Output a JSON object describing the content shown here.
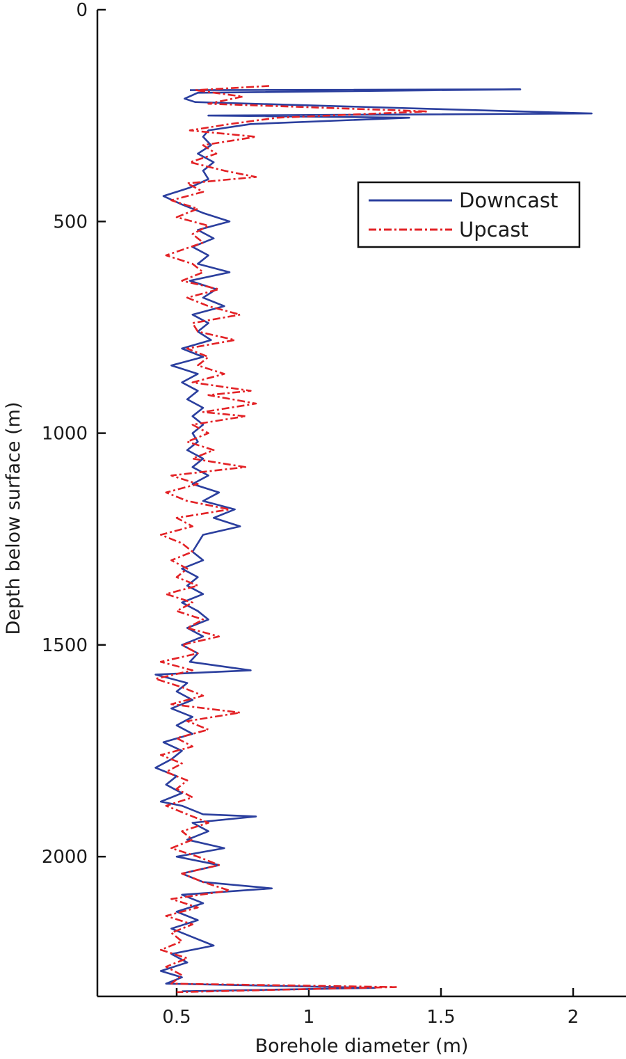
{
  "chart_data": {
    "type": "line",
    "orientation": "depth-profile",
    "title": "",
    "xlabel": "Borehole diameter (m)",
    "ylabel": "Depth below surface (m)",
    "xlim": [
      0.2,
      2.2
    ],
    "ylim": [
      0,
      2330
    ],
    "y_inverted": true,
    "grid": false,
    "legend_position": "top-right",
    "x_ticks": [
      0.5,
      1,
      1.5,
      2
    ],
    "x_tick_labels": [
      "0.5",
      "1",
      "1.5",
      "2"
    ],
    "y_ticks": [
      0,
      500,
      1000,
      1500,
      2000
    ],
    "y_tick_labels": [
      "0",
      "500",
      "1000",
      "1500",
      "2000"
    ],
    "series": [
      {
        "name": "Downcast",
        "color": "#2b3f9e",
        "dash": "solid",
        "points": [
          [
            0.55,
            190
          ],
          [
            1.8,
            188
          ],
          [
            0.58,
            196
          ],
          [
            0.53,
            210
          ],
          [
            0.57,
            218
          ],
          [
            2.07,
            245
          ],
          [
            0.62,
            250
          ],
          [
            1.38,
            255
          ],
          [
            0.78,
            270
          ],
          [
            0.62,
            285
          ],
          [
            0.6,
            300
          ],
          [
            0.63,
            320
          ],
          [
            0.58,
            340
          ],
          [
            0.64,
            360
          ],
          [
            0.6,
            380
          ],
          [
            0.62,
            400
          ],
          [
            0.55,
            420
          ],
          [
            0.45,
            440
          ],
          [
            0.52,
            460
          ],
          [
            0.6,
            480
          ],
          [
            0.7,
            500
          ],
          [
            0.58,
            520
          ],
          [
            0.64,
            540
          ],
          [
            0.56,
            560
          ],
          [
            0.62,
            580
          ],
          [
            0.58,
            600
          ],
          [
            0.7,
            620
          ],
          [
            0.55,
            640
          ],
          [
            0.65,
            660
          ],
          [
            0.6,
            680
          ],
          [
            0.68,
            700
          ],
          [
            0.56,
            720
          ],
          [
            0.62,
            740
          ],
          [
            0.58,
            760
          ],
          [
            0.63,
            780
          ],
          [
            0.52,
            800
          ],
          [
            0.6,
            820
          ],
          [
            0.48,
            840
          ],
          [
            0.58,
            860
          ],
          [
            0.52,
            880
          ],
          [
            0.58,
            900
          ],
          [
            0.54,
            920
          ],
          [
            0.6,
            940
          ],
          [
            0.56,
            960
          ],
          [
            0.6,
            980
          ],
          [
            0.56,
            1000
          ],
          [
            0.58,
            1020
          ],
          [
            0.54,
            1040
          ],
          [
            0.6,
            1060
          ],
          [
            0.56,
            1080
          ],
          [
            0.62,
            1100
          ],
          [
            0.56,
            1120
          ],
          [
            0.66,
            1140
          ],
          [
            0.6,
            1160
          ],
          [
            0.72,
            1180
          ],
          [
            0.64,
            1200
          ],
          [
            0.74,
            1220
          ],
          [
            0.6,
            1240
          ],
          [
            0.58,
            1260
          ],
          [
            0.56,
            1280
          ],
          [
            0.6,
            1300
          ],
          [
            0.52,
            1320
          ],
          [
            0.58,
            1340
          ],
          [
            0.54,
            1360
          ],
          [
            0.6,
            1380
          ],
          [
            0.52,
            1400
          ],
          [
            0.58,
            1420
          ],
          [
            0.62,
            1440
          ],
          [
            0.54,
            1460
          ],
          [
            0.6,
            1480
          ],
          [
            0.52,
            1500
          ],
          [
            0.58,
            1520
          ],
          [
            0.55,
            1540
          ],
          [
            0.78,
            1560
          ],
          [
            0.42,
            1570
          ],
          [
            0.54,
            1590
          ],
          [
            0.5,
            1610
          ],
          [
            0.56,
            1630
          ],
          [
            0.48,
            1650
          ],
          [
            0.56,
            1670
          ],
          [
            0.5,
            1690
          ],
          [
            0.56,
            1710
          ],
          [
            0.45,
            1730
          ],
          [
            0.52,
            1750
          ],
          [
            0.48,
            1770
          ],
          [
            0.42,
            1790
          ],
          [
            0.5,
            1810
          ],
          [
            0.46,
            1830
          ],
          [
            0.52,
            1850
          ],
          [
            0.44,
            1870
          ],
          [
            0.52,
            1880
          ],
          [
            0.6,
            1900
          ],
          [
            0.8,
            1905
          ],
          [
            0.56,
            1920
          ],
          [
            0.62,
            1940
          ],
          [
            0.54,
            1960
          ],
          [
            0.68,
            1980
          ],
          [
            0.5,
            2000
          ],
          [
            0.66,
            2020
          ],
          [
            0.52,
            2040
          ],
          [
            0.6,
            2060
          ],
          [
            0.86,
            2075
          ],
          [
            0.52,
            2090
          ],
          [
            0.6,
            2110
          ],
          [
            0.5,
            2130
          ],
          [
            0.58,
            2150
          ],
          [
            0.48,
            2170
          ],
          [
            0.56,
            2190
          ],
          [
            0.64,
            2210
          ],
          [
            0.48,
            2230
          ],
          [
            0.54,
            2250
          ],
          [
            0.44,
            2270
          ],
          [
            0.52,
            2285
          ],
          [
            0.46,
            2300
          ],
          [
            1.25,
            2310
          ],
          [
            0.52,
            2318
          ]
        ]
      },
      {
        "name": "Upcast",
        "color": "#e32226",
        "dash": "dashdot",
        "points": [
          [
            0.85,
            180
          ],
          [
            0.57,
            190
          ],
          [
            0.75,
            205
          ],
          [
            0.62,
            222
          ],
          [
            1.45,
            240
          ],
          [
            0.88,
            255
          ],
          [
            0.7,
            270
          ],
          [
            0.55,
            285
          ],
          [
            0.8,
            300
          ],
          [
            0.6,
            320
          ],
          [
            0.65,
            340
          ],
          [
            0.55,
            360
          ],
          [
            0.68,
            380
          ],
          [
            0.8,
            395
          ],
          [
            0.54,
            410
          ],
          [
            0.6,
            430
          ],
          [
            0.48,
            450
          ],
          [
            0.58,
            470
          ],
          [
            0.5,
            490
          ],
          [
            0.62,
            510
          ],
          [
            0.56,
            530
          ],
          [
            0.6,
            550
          ],
          [
            0.46,
            580
          ],
          [
            0.56,
            600
          ],
          [
            0.6,
            620
          ],
          [
            0.52,
            640
          ],
          [
            0.66,
            660
          ],
          [
            0.54,
            680
          ],
          [
            0.62,
            700
          ],
          [
            0.74,
            720
          ],
          [
            0.56,
            740
          ],
          [
            0.58,
            760
          ],
          [
            0.72,
            780
          ],
          [
            0.54,
            800
          ],
          [
            0.62,
            820
          ],
          [
            0.58,
            840
          ],
          [
            0.68,
            860
          ],
          [
            0.56,
            880
          ],
          [
            0.78,
            900
          ],
          [
            0.62,
            910
          ],
          [
            0.8,
            930
          ],
          [
            0.6,
            950
          ],
          [
            0.76,
            960
          ],
          [
            0.56,
            980
          ],
          [
            0.62,
            1000
          ],
          [
            0.54,
            1020
          ],
          [
            0.64,
            1040
          ],
          [
            0.56,
            1060
          ],
          [
            0.76,
            1080
          ],
          [
            0.48,
            1100
          ],
          [
            0.58,
            1120
          ],
          [
            0.46,
            1140
          ],
          [
            0.54,
            1160
          ],
          [
            0.7,
            1180
          ],
          [
            0.5,
            1200
          ],
          [
            0.56,
            1220
          ],
          [
            0.44,
            1240
          ],
          [
            0.52,
            1260
          ],
          [
            0.56,
            1280
          ],
          [
            0.48,
            1300
          ],
          [
            0.54,
            1320
          ],
          [
            0.5,
            1340
          ],
          [
            0.58,
            1360
          ],
          [
            0.46,
            1380
          ],
          [
            0.56,
            1400
          ],
          [
            0.5,
            1420
          ],
          [
            0.6,
            1440
          ],
          [
            0.54,
            1460
          ],
          [
            0.66,
            1480
          ],
          [
            0.52,
            1500
          ],
          [
            0.58,
            1520
          ],
          [
            0.44,
            1540
          ],
          [
            0.56,
            1560
          ],
          [
            0.42,
            1580
          ],
          [
            0.52,
            1600
          ],
          [
            0.6,
            1620
          ],
          [
            0.48,
            1640
          ],
          [
            0.74,
            1660
          ],
          [
            0.54,
            1680
          ],
          [
            0.62,
            1700
          ],
          [
            0.5,
            1720
          ],
          [
            0.56,
            1740
          ],
          [
            0.44,
            1760
          ],
          [
            0.52,
            1780
          ],
          [
            0.46,
            1800
          ],
          [
            0.54,
            1820
          ],
          [
            0.5,
            1840
          ],
          [
            0.56,
            1860
          ],
          [
            0.46,
            1880
          ],
          [
            0.54,
            1900
          ],
          [
            0.62,
            1920
          ],
          [
            0.52,
            1940
          ],
          [
            0.56,
            1960
          ],
          [
            0.48,
            1980
          ],
          [
            0.58,
            2000
          ],
          [
            0.66,
            2020
          ],
          [
            0.52,
            2040
          ],
          [
            0.6,
            2060
          ],
          [
            0.7,
            2080
          ],
          [
            0.48,
            2100
          ],
          [
            0.58,
            2120
          ],
          [
            0.46,
            2140
          ],
          [
            0.56,
            2160
          ],
          [
            0.48,
            2180
          ],
          [
            0.52,
            2200
          ],
          [
            0.44,
            2220
          ],
          [
            0.54,
            2240
          ],
          [
            0.46,
            2260
          ],
          [
            0.52,
            2280
          ],
          [
            0.48,
            2300
          ],
          [
            1.33,
            2308
          ],
          [
            0.5,
            2320
          ]
        ]
      }
    ]
  }
}
